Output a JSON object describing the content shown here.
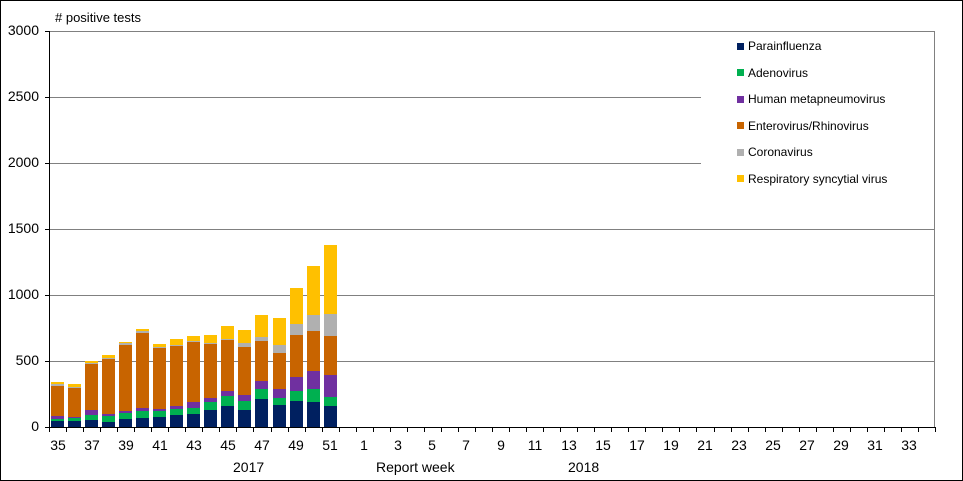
{
  "chart_data": {
    "type": "bar",
    "stacked": true,
    "title": "",
    "ylabel": "# positive tests",
    "xlabel": "Report week",
    "ylim": [
      0,
      3000
    ],
    "yticks": [
      0,
      500,
      1000,
      1500,
      2000,
      2500,
      3000
    ],
    "grid": true,
    "legend_position": "upper right (inside)",
    "year_groups": [
      {
        "label": "2017",
        "weeks": "35-52"
      },
      {
        "label": "2018",
        "weeks": "1-34"
      }
    ],
    "categories": [
      "35",
      "36",
      "37",
      "38",
      "39",
      "40",
      "41",
      "42",
      "43",
      "44",
      "45",
      "46",
      "47",
      "48",
      "49",
      "50",
      "51",
      "52",
      "1",
      "2",
      "3",
      "4",
      "5",
      "6",
      "7",
      "8",
      "9",
      "10",
      "11",
      "12",
      "13",
      "14",
      "15",
      "16",
      "17",
      "18",
      "19",
      "20",
      "21",
      "22",
      "23",
      "24",
      "25",
      "26",
      "27",
      "28",
      "29",
      "30",
      "31",
      "32",
      "33",
      "34"
    ],
    "tick_labels": [
      "35",
      "37",
      "39",
      "41",
      "43",
      "45",
      "47",
      "49",
      "51",
      "1",
      "3",
      "5",
      "7",
      "9",
      "11",
      "13",
      "15",
      "17",
      "19",
      "21",
      "23",
      "25",
      "27",
      "29",
      "31",
      "33"
    ],
    "series": [
      {
        "name": "Parainfluenza",
        "color": "#002060",
        "values": [
          49,
          45,
          55,
          40,
          63,
          68,
          76,
          91,
          99,
          129,
          161,
          131,
          215,
          169,
          199,
          190,
          161
        ]
      },
      {
        "name": "Adenovirus",
        "color": "#00B050",
        "values": [
          15,
          20,
          38,
          43,
          41,
          53,
          45,
          48,
          45,
          61,
          73,
          68,
          71,
          53,
          76,
          101,
          68
        ]
      },
      {
        "name": "Human metapneumovirus",
        "color": "#7030A0",
        "values": [
          19,
          8,
          33,
          15,
          15,
          23,
          15,
          23,
          45,
          30,
          40,
          45,
          65,
          68,
          106,
          136,
          167
        ]
      },
      {
        "name": "Enterovirus/Rhinovirus",
        "color": "#C86400",
        "values": [
          231,
          222,
          351,
          417,
          503,
          569,
          462,
          452,
          455,
          409,
          384,
          364,
          303,
          273,
          318,
          303,
          293
        ]
      },
      {
        "name": "Coronavirus",
        "color": "#B0B0B0",
        "values": [
          11,
          8,
          10,
          5,
          15,
          17,
          8,
          8,
          8,
          5,
          5,
          26,
          26,
          61,
          81,
          119,
          167
        ]
      },
      {
        "name": "Respiratory syncytial virus",
        "color": "#FFC000",
        "values": [
          13,
          20,
          11,
          27,
          10,
          15,
          23,
          45,
          38,
          65,
          103,
          103,
          171,
          205,
          273,
          374,
          523
        ]
      }
    ],
    "totals": [
      338,
      323,
      498,
      547,
      647,
      745,
      629,
      667,
      690,
      699,
      766,
      737,
      851,
      829,
      1053,
      1223,
      1379
    ]
  },
  "axis": {
    "y_title": "# positive tests",
    "y_labels": [
      "3000",
      "2500",
      "2000",
      "1500",
      "1000",
      "500",
      "0"
    ],
    "x_title": "Report week",
    "year_2017": "2017",
    "year_2018": "2018"
  },
  "legend": [
    {
      "label": "Parainfluenza",
      "color": "#002060"
    },
    {
      "label": "Adenovirus",
      "color": "#00B050"
    },
    {
      "label": "Human metapneumovirus",
      "color": "#7030A0"
    },
    {
      "label": "Enterovirus/Rhinovirus",
      "color": "#C86400"
    },
    {
      "label": "Coronavirus",
      "color": "#B0B0B0"
    },
    {
      "label": "Respiratory syncytial virus",
      "color": "#FFC000"
    }
  ]
}
